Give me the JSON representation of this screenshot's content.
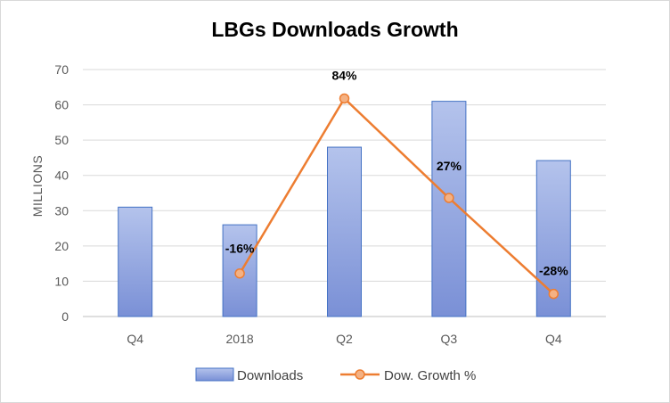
{
  "chart_data": {
    "type": "bar+line",
    "title": "LBGs Downloads Growth",
    "ylabel": "MILLIONS",
    "xlabel": "",
    "ylim": [
      0,
      70
    ],
    "yticks": [
      0,
      10,
      20,
      30,
      40,
      50,
      60,
      70
    ],
    "categories": [
      "Q4",
      "2018",
      "Q2",
      "Q3",
      "Q4"
    ],
    "series": [
      {
        "name": "Downloads",
        "type": "bar",
        "color": "#8fa2dc",
        "values": [
          31,
          26,
          48,
          61,
          44.2
        ]
      },
      {
        "name": "Dow. Growth %",
        "type": "line",
        "color": "#ed7d31",
        "plot_values": [
          null,
          12.2,
          61.8,
          33.6,
          6.4
        ],
        "labels": [
          null,
          "-16%",
          "84%",
          "27%",
          "-28%"
        ]
      }
    ],
    "legend": [
      "Downloads",
      "Dow. Growth %"
    ],
    "legend_position": "bottom",
    "grid": true
  }
}
